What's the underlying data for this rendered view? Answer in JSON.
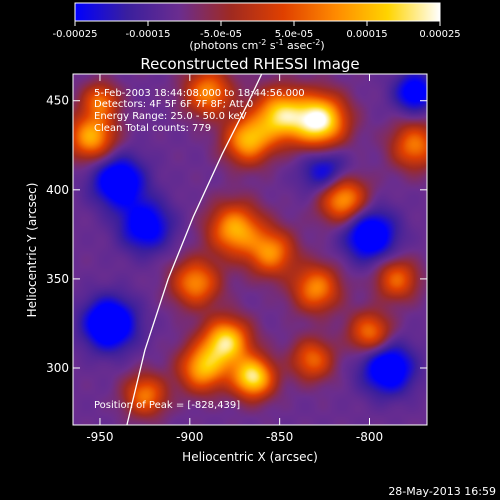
{
  "chart_data": {
    "type": "heatmap",
    "title": "Reconstructed RHESSI Image",
    "xlabel": "Heliocentric X (arcsec)",
    "ylabel": "Heliocentric Y (arcsec)",
    "xlim": [
      -965,
      -768
    ],
    "ylim": [
      268,
      465
    ],
    "x_ticks": [
      -950,
      -900,
      -850,
      -800
    ],
    "x_tick_labels": [
      "-950",
      "-900",
      "-850",
      "-800"
    ],
    "y_ticks": [
      300,
      350,
      400,
      450
    ],
    "y_tick_labels": [
      "300",
      "350",
      "400",
      "450"
    ],
    "colorbar": {
      "range": [
        -0.00025,
        0.00025
      ],
      "ticks": [
        -0.00025,
        -0.00015,
        -5e-05,
        5e-05,
        0.00015,
        0.00025
      ],
      "tick_labels": [
        "-0.00025",
        "-0.00015",
        "-5.0e-05",
        "5.0e-05",
        "0.00015",
        "0.00025"
      ],
      "units_main": "(photons cm",
      "units_sup1": "-2",
      "units_mid": " s",
      "units_sup2": "-1",
      "units_end": " asec",
      "units_sup3": "-2",
      "units_close": ")",
      "colormap": [
        "#0000ff",
        "#3a1f9e",
        "#6b2d8f",
        "#a02a20",
        "#e04000",
        "#ff8a00",
        "#ffd400",
        "#ffffff"
      ]
    },
    "annotations": [
      "5-Feb-2003 18:44:08.000 to 18:44:56.000",
      "Detectors: 4F 5F 6F 7F 8F; Att 0",
      "Energy Range: 25.0 - 50.0 keV",
      "Clean     Total counts: 779"
    ],
    "peak_label": "Position of Peak = [-828,439]",
    "peak": [
      -828,
      439
    ],
    "limb_curve": [
      [
        -935,
        268
      ],
      [
        -925,
        310
      ],
      [
        -912,
        350
      ],
      [
        -898,
        385
      ],
      [
        -882,
        420
      ],
      [
        -868,
        448
      ],
      [
        -860,
        465
      ]
    ],
    "sources": [
      {
        "x": -828,
        "y": 439,
        "amp": 1.0,
        "r": 10
      },
      {
        "x": -850,
        "y": 442,
        "amp": 0.8,
        "r": 10
      },
      {
        "x": -868,
        "y": 428,
        "amp": 0.7,
        "r": 9
      },
      {
        "x": -890,
        "y": 455,
        "amp": 0.6,
        "r": 9
      },
      {
        "x": -955,
        "y": 430,
        "amp": 0.7,
        "r": 9
      },
      {
        "x": -950,
        "y": 450,
        "amp": 0.5,
        "r": 7
      },
      {
        "x": -875,
        "y": 378,
        "amp": 0.7,
        "r": 10
      },
      {
        "x": -855,
        "y": 365,
        "amp": 0.6,
        "r": 9
      },
      {
        "x": -897,
        "y": 348,
        "amp": 0.6,
        "r": 9
      },
      {
        "x": -815,
        "y": 395,
        "amp": 0.7,
        "r": 9
      },
      {
        "x": -830,
        "y": 345,
        "amp": 0.6,
        "r": 9
      },
      {
        "x": -832,
        "y": 305,
        "amp": 0.5,
        "r": 8
      },
      {
        "x": -880,
        "y": 315,
        "amp": 0.85,
        "r": 9
      },
      {
        "x": -865,
        "y": 295,
        "amp": 0.9,
        "r": 8
      },
      {
        "x": -893,
        "y": 300,
        "amp": 0.7,
        "r": 9
      },
      {
        "x": -925,
        "y": 285,
        "amp": 0.55,
        "r": 8
      },
      {
        "x": -775,
        "y": 425,
        "amp": 0.55,
        "r": 9
      },
      {
        "x": -785,
        "y": 350,
        "amp": 0.5,
        "r": 8
      },
      {
        "x": -800,
        "y": 320,
        "amp": 0.55,
        "r": 8
      },
      {
        "x": -940,
        "y": 405,
        "amp": -0.6,
        "r": 10
      },
      {
        "x": -945,
        "y": 325,
        "amp": -0.7,
        "r": 10
      },
      {
        "x": -925,
        "y": 380,
        "amp": -0.5,
        "r": 10
      },
      {
        "x": -800,
        "y": 375,
        "amp": -0.6,
        "r": 10
      },
      {
        "x": -790,
        "y": 300,
        "amp": -0.6,
        "r": 10
      },
      {
        "x": -825,
        "y": 410,
        "amp": -0.4,
        "r": 9
      },
      {
        "x": -775,
        "y": 455,
        "amp": -0.5,
        "r": 8
      }
    ]
  },
  "footer": {
    "timestamp": "28-May-2013 16:59"
  }
}
